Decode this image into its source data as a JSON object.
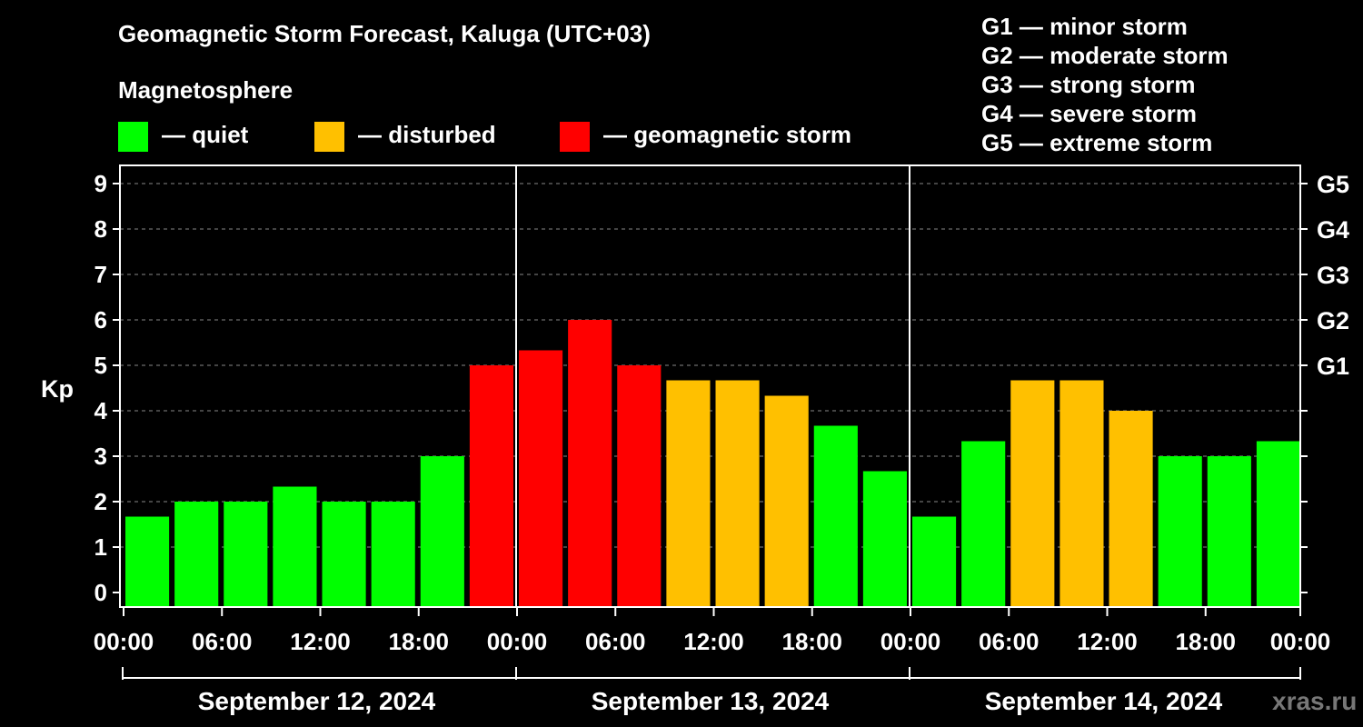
{
  "header": {
    "title": "Geomagnetic Storm Forecast, Kaluga (UTC+03)",
    "subtitle": "Magnetosphere"
  },
  "legend": [
    {
      "label": "— quiet",
      "color": "#00ff00"
    },
    {
      "label": "— disturbed",
      "color": "#ffc000"
    },
    {
      "label": "— geomagnetic storm",
      "color": "#ff0000"
    }
  ],
  "g_scale_legend": [
    "G1 — minor storm",
    "G2 — moderate storm",
    "G3 — strong storm",
    "G4 — severe storm",
    "G5 — extreme storm"
  ],
  "watermark": "xras.ru",
  "chart_data": {
    "type": "bar",
    "title": "Geomagnetic Storm Forecast, Kaluga (UTC+03)",
    "ylabel": "Kp",
    "ylim": [
      0,
      9
    ],
    "grid": true,
    "y_ticks": [
      "0",
      "1",
      "2",
      "3",
      "4",
      "5",
      "6",
      "7",
      "8",
      "9"
    ],
    "right_ticks": [
      {
        "kp": 5,
        "label": "G1"
      },
      {
        "kp": 6,
        "label": "G2"
      },
      {
        "kp": 7,
        "label": "G3"
      },
      {
        "kp": 8,
        "label": "G4"
      },
      {
        "kp": 9,
        "label": "G5"
      }
    ],
    "x_tick_labels": [
      "00:00",
      "06:00",
      "12:00",
      "18:00",
      "00:00",
      "06:00",
      "12:00",
      "18:00",
      "00:00",
      "06:00",
      "12:00",
      "18:00",
      "00:00"
    ],
    "days": [
      "September 12, 2024",
      "September 13, 2024",
      "September 14, 2024"
    ],
    "interval_hours": 3,
    "values": [
      1.67,
      2.0,
      2.0,
      2.33,
      2.0,
      2.0,
      3.0,
      5.0,
      5.33,
      6.0,
      5.0,
      4.67,
      4.67,
      4.33,
      3.67,
      2.67,
      1.67,
      3.33,
      4.67,
      4.67,
      4.0,
      3.0,
      3.0,
      3.33
    ],
    "categories": [
      "quiet",
      "quiet",
      "quiet",
      "quiet",
      "quiet",
      "quiet",
      "quiet",
      "storm",
      "storm",
      "storm",
      "storm",
      "disturbed",
      "disturbed",
      "disturbed",
      "quiet",
      "quiet",
      "quiet",
      "quiet",
      "disturbed",
      "disturbed",
      "disturbed",
      "quiet",
      "quiet",
      "quiet"
    ],
    "colors": {
      "quiet": "#00ff00",
      "disturbed": "#ffc000",
      "storm": "#ff0000"
    }
  }
}
